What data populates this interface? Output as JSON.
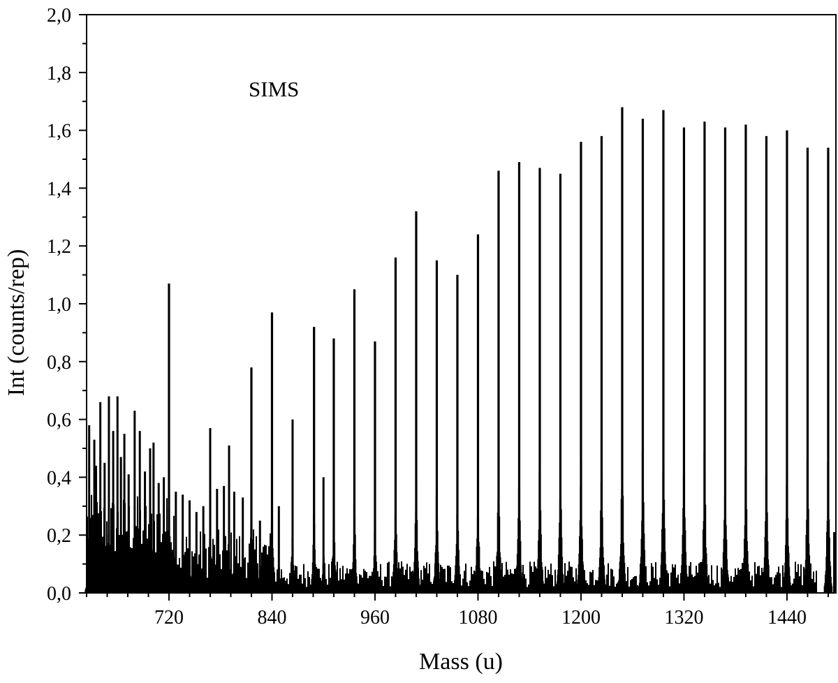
{
  "chart_data": {
    "type": "bar",
    "title": "",
    "annotation": "SIMS",
    "xlabel": "Mass (u)",
    "ylabel": "Int (counts/rep)",
    "xlim": [
      624,
      1497
    ],
    "ylim": [
      0.0,
      2.0
    ],
    "x_ticks": [
      {
        "value": 720,
        "label": "720"
      },
      {
        "value": 840,
        "label": "840"
      },
      {
        "value": 960,
        "label": "960"
      },
      {
        "value": 1080,
        "label": "1080"
      },
      {
        "value": 1200,
        "label": "1200"
      },
      {
        "value": 1320,
        "label": "1320"
      },
      {
        "value": 1440,
        "label": "1440"
      }
    ],
    "x_minor_step": 24,
    "y_ticks": [
      {
        "value": 0.0,
        "label": "0,0"
      },
      {
        "value": 0.2,
        "label": "0,2"
      },
      {
        "value": 0.4,
        "label": "0,4"
      },
      {
        "value": 0.6,
        "label": "0,6"
      },
      {
        "value": 0.8,
        "label": "0,8"
      },
      {
        "value": 1.0,
        "label": "1,0"
      },
      {
        "value": 1.2,
        "label": "1,2"
      },
      {
        "value": 1.4,
        "label": "1,4"
      },
      {
        "value": 1.6,
        "label": "1,6"
      },
      {
        "value": 1.8,
        "label": "1,8"
      },
      {
        "value": 2.0,
        "label": "2,0"
      }
    ],
    "y_minor_step": 0.1,
    "grid": false,
    "legend": "none",
    "color": "#000000",
    "major_peaks": {
      "x": [
        720,
        816,
        840,
        889,
        912,
        936,
        960,
        984,
        1008,
        1032,
        1056,
        1080,
        1104,
        1128,
        1152,
        1176,
        1200,
        1224,
        1248,
        1272,
        1296,
        1320,
        1344,
        1368,
        1392,
        1416,
        1440,
        1464,
        1488
      ],
      "values": [
        1.07,
        0.78,
        0.97,
        0.92,
        0.88,
        1.05,
        0.87,
        1.16,
        1.32,
        1.15,
        1.1,
        1.24,
        1.46,
        1.49,
        1.47,
        1.45,
        1.56,
        1.58,
        1.68,
        1.64,
        1.67,
        1.61,
        1.63,
        1.61,
        1.62,
        1.58,
        1.6,
        1.54,
        1.54
      ]
    },
    "minor_peaks": {
      "x": [
        627,
        633,
        635,
        640,
        645,
        650,
        655,
        660,
        664,
        668,
        673,
        680,
        686,
        692,
        698,
        702,
        708,
        714,
        728,
        736,
        744,
        752,
        760,
        768,
        776,
        784,
        790,
        796,
        806,
        826,
        848,
        864,
        900
      ],
      "values": [
        0.58,
        0.53,
        0.44,
        0.66,
        0.45,
        0.68,
        0.56,
        0.68,
        0.47,
        0.55,
        0.41,
        0.63,
        0.56,
        0.42,
        0.5,
        0.52,
        0.38,
        0.4,
        0.35,
        0.34,
        0.32,
        0.28,
        0.3,
        0.57,
        0.36,
        0.37,
        0.51,
        0.35,
        0.33,
        0.25,
        0.3,
        0.6,
        0.4
      ]
    },
    "end_peak": {
      "x": 1495,
      "value": 0.21
    }
  }
}
